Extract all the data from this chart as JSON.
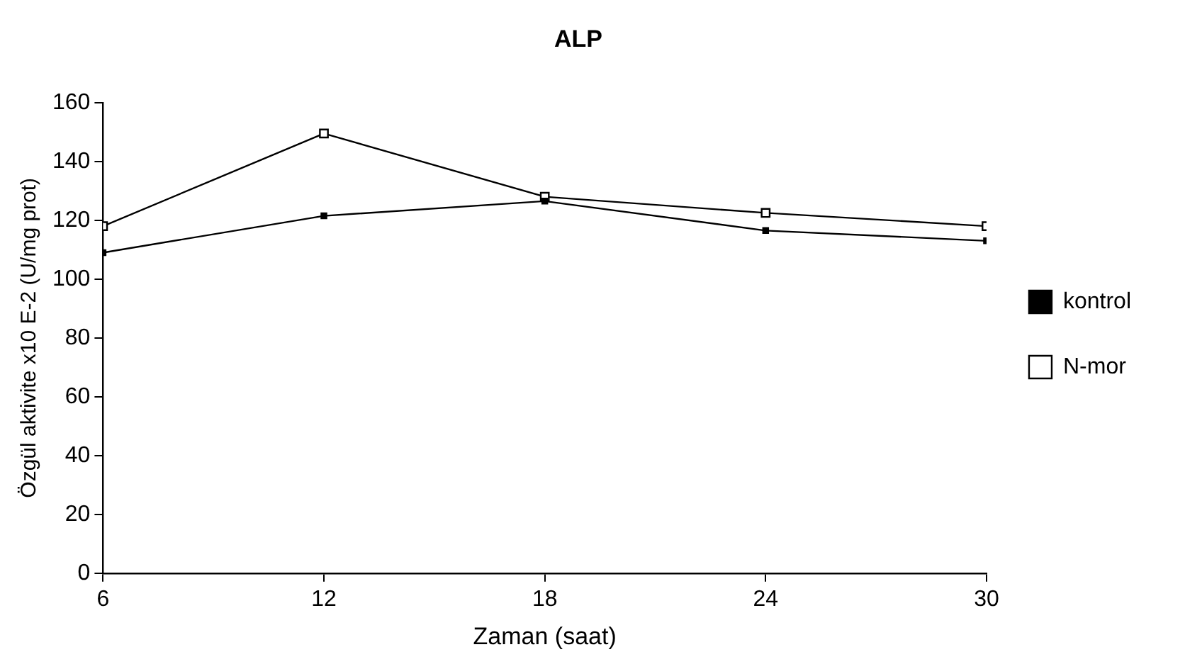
{
  "chart_data": {
    "type": "line",
    "title": "ALP",
    "xlabel": "Zaman (saat)",
    "ylabel": "Özgül aktivite x10 E-2 (U/mg prot)",
    "x": [
      6,
      12,
      18,
      24,
      30
    ],
    "series": [
      {
        "name": "kontrol",
        "color": "#000000",
        "values": [
          109,
          121.5,
          126.5,
          116.5,
          113
        ]
      },
      {
        "name": "N-mor",
        "color": "#000000",
        "values": [
          118,
          149.5,
          128,
          122.5,
          118
        ]
      }
    ],
    "xlim": [
      6,
      30
    ],
    "xticks": [
      6,
      12,
      18,
      24,
      30
    ],
    "ylim": [
      0,
      160
    ],
    "yticks": [
      0,
      20,
      40,
      60,
      80,
      100,
      120,
      140,
      160
    ],
    "grid": false,
    "legend": "right",
    "marker": "square",
    "line_style": "solid"
  }
}
